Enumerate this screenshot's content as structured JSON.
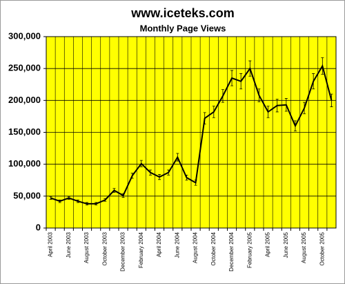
{
  "chart_data": {
    "type": "line",
    "title": "www.iceteks.com",
    "subtitle": "Monthly Page Views",
    "categories": [
      "April 2003",
      null,
      "June 2003",
      null,
      "August 2003",
      null,
      "October 2003",
      null,
      "December 2003",
      null,
      "February 2004",
      null,
      "April 2004",
      null,
      "June 2004",
      null,
      "August 2004",
      null,
      "October 2004",
      null,
      "December 2004",
      null,
      "February 2005",
      null,
      "April 2005",
      null,
      "June 2005",
      null,
      "August 2005",
      null,
      "October 2005",
      null
    ],
    "series": [
      {
        "color": "#000000",
        "values": [
          47000,
          42000,
          47000,
          42000,
          38000,
          38000,
          44000,
          59000,
          51000,
          82000,
          101000,
          87000,
          80000,
          87000,
          111000,
          79000,
          71000,
          172000,
          182000,
          207000,
          235000,
          230000,
          250000,
          208000,
          182000,
          192000,
          193000,
          160000,
          188000,
          230000,
          254000,
          200000
        ],
        "errors": [
          2000,
          2000,
          2000,
          2000,
          2000,
          2000,
          2000,
          3000,
          3000,
          4000,
          5000,
          4000,
          4000,
          4000,
          6000,
          4000,
          4000,
          9000,
          9000,
          10000,
          12000,
          12000,
          12000,
          10000,
          9000,
          10000,
          10000,
          8000,
          9000,
          12000,
          13000,
          10000
        ]
      }
    ],
    "ylim": [
      0,
      300000
    ],
    "yticks": [
      0,
      {
        "value": 50000,
        "label": "50,000"
      },
      {
        "value": 100000,
        "label": "100,000"
      },
      {
        "value": 150000,
        "label": "150,000"
      },
      {
        "value": 200000,
        "label": "200,000"
      },
      {
        "value": 250000,
        "label": "250,000"
      },
      {
        "value": 300000,
        "label": "300,000"
      }
    ],
    "grid": true,
    "plot_background": "#ffff00"
  }
}
